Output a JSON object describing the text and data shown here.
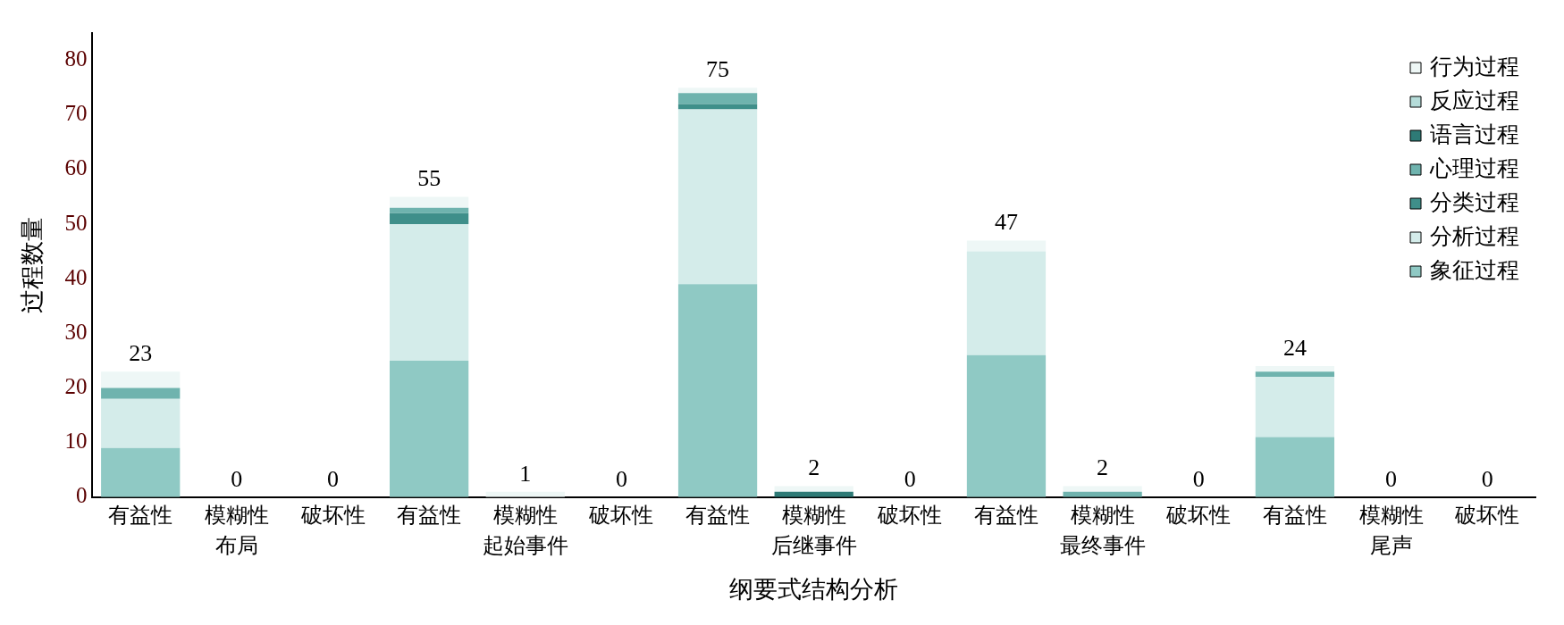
{
  "chart_data": {
    "type": "bar",
    "stacked": true,
    "xlabel": "纲要式结构分析",
    "ylabel": "过程数量",
    "categories": [
      "有益性",
      "模糊性",
      "破坏性",
      "有益性",
      "模糊性",
      "破坏性",
      "有益性",
      "模糊性",
      "破坏性",
      "有益性",
      "模糊性",
      "破坏性",
      "有益性",
      "模糊性",
      "破坏性"
    ],
    "series": [
      {
        "name": "象征过程",
        "color": "#8fc9c4",
        "values": [
          9,
          0,
          0,
          25,
          0,
          0,
          39,
          0,
          0,
          26,
          0,
          0,
          11,
          0,
          0
        ]
      },
      {
        "name": "分析过程",
        "color": "#d4ecea",
        "values": [
          9,
          0,
          0,
          25,
          0,
          0,
          32,
          0,
          0,
          19,
          0,
          0,
          11,
          0,
          0
        ]
      },
      {
        "name": "分类过程",
        "color": "#3f8f8a",
        "values": [
          0,
          0,
          0,
          2,
          0,
          0,
          1,
          0,
          0,
          0,
          0,
          0,
          0,
          0,
          0
        ]
      },
      {
        "name": "心理过程",
        "color": "#6fb3ae",
        "values": [
          2,
          0,
          0,
          1,
          0,
          0,
          2,
          0,
          0,
          0,
          1,
          0,
          1,
          0,
          0
        ]
      },
      {
        "name": "语言过程",
        "color": "#2e7a76",
        "values": [
          0,
          0,
          0,
          0,
          0,
          0,
          0,
          1,
          0,
          0,
          0,
          0,
          0,
          0,
          0
        ]
      },
      {
        "name": "反应过程",
        "color": "#b5dcd9",
        "values": [
          0,
          0,
          0,
          0,
          0,
          0,
          0,
          0,
          0,
          0,
          0,
          0,
          0,
          0,
          0
        ]
      },
      {
        "name": "行为过程",
        "color": "#eef7f6",
        "values": [
          3,
          0,
          0,
          2,
          1,
          0,
          1,
          1,
          0,
          2,
          1,
          0,
          1,
          0,
          0
        ]
      }
    ],
    "totals": [
      "23",
      "0",
      "0",
      "55",
      "1",
      "0",
      "75",
      "2",
      "0",
      "47",
      "2",
      "0",
      "24",
      "0",
      "0"
    ],
    "annotations": [
      "布局",
      "起始事件",
      "后继事件",
      "最终事件",
      "尾声"
    ],
    "ylim": [
      0,
      85
    ],
    "yticks": [
      0,
      10,
      20,
      30,
      40,
      50,
      60,
      70,
      80
    ],
    "grid": false,
    "legend": "top right"
  }
}
